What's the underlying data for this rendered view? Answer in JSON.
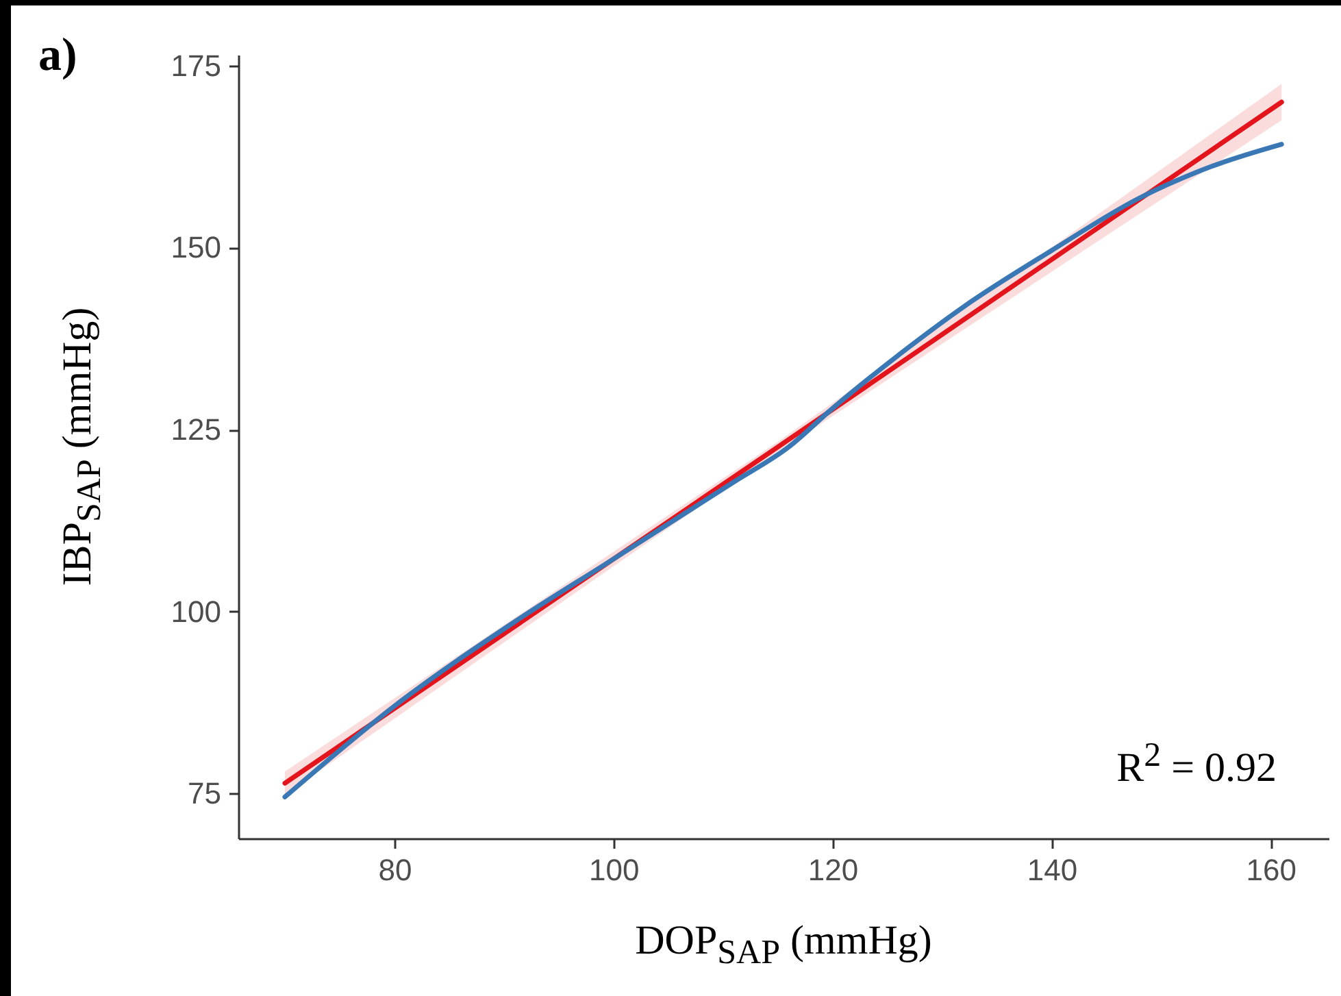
{
  "chart_data": {
    "type": "line",
    "xlabel": "DOP$_{SAP}$ (mmHg)",
    "ylabel": "IBP$_{SAP}$ (mmHg)",
    "annotations": [
      "a)",
      "R$^{2}$ = 0.92"
    ],
    "series": [
      {
        "color": "#3a78b5",
        "x": [
          70,
          80,
          91,
          100,
          111,
          116,
          120,
          126,
          132,
          140,
          148,
          154.5,
          161
        ],
        "values": [
          74.5,
          87,
          98.6,
          107.2,
          117.8,
          122.6,
          127.9,
          135.2,
          141.9,
          149.6,
          156.8,
          161.1,
          164.2
        ]
      },
      {
        "color": "#e3141c",
        "x": [
          70,
          115,
          161
        ],
        "values": [
          76.4,
          122.6,
          170
        ],
        "lower": [
          74.8,
          121.9,
          167.5
        ],
        "upper": [
          78,
          123.3,
          172.5
        ]
      }
    ],
    "xlim": [
      65.75,
      165.3
    ],
    "ylim": [
      68.8,
      176.5
    ],
    "xticks": [
      80,
      100,
      120,
      140,
      160
    ],
    "yticks": [
      75,
      100,
      125,
      150,
      175
    ],
    "grid": false,
    "marker": "none",
    "line_style": "solid"
  }
}
